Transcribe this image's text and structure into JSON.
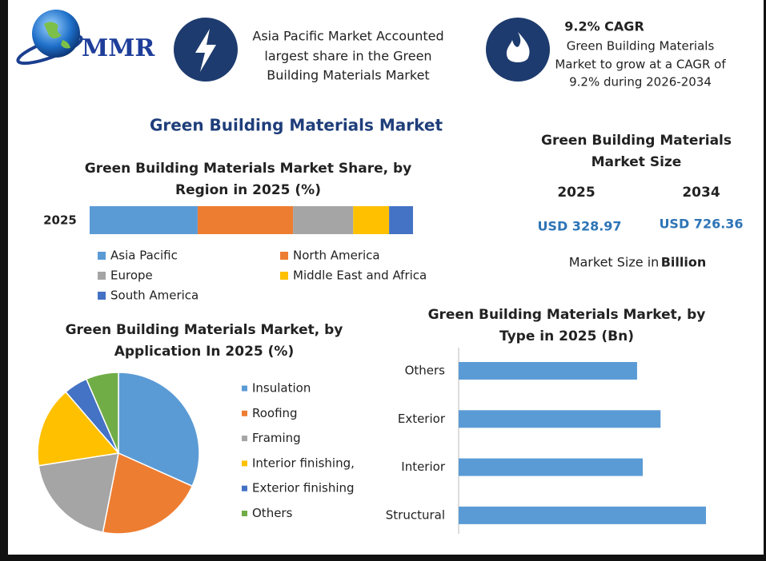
{
  "header": {
    "logo": "MMR",
    "info": [
      {
        "lines": [
          "Asia Pacific Market Accounted",
          "largest share in the Green",
          "Building Materials Market"
        ]
      },
      {
        "heading": "9.2% CAGR",
        "lines": [
          "Green Building Materials",
          "Market to grow at a CAGR of",
          "9.2% during 2026-2034"
        ]
      }
    ]
  },
  "main_title": "Green Building Materials Market",
  "market_size": {
    "title": [
      "Green Building Materials",
      "Market Size"
    ],
    "years": [
      "2025",
      "2034"
    ],
    "values": [
      "USD 328.97",
      "USD 726.36"
    ],
    "note": "Market Size in",
    "unit": "Billion"
  },
  "chart_data": [
    {
      "type": "stacked_bar",
      "title": [
        "Green Building Materials Market Share, by",
        "Region in 2025 (%)"
      ],
      "categories": [
        "2025"
      ],
      "series": [
        {
          "name": "Asia Pacific",
          "color": "#5b9bd5",
          "values": [
            33.4
          ]
        },
        {
          "name": "North America",
          "color": "#ed7d31",
          "values": [
            29.5
          ]
        },
        {
          "name": "Europe",
          "color": "#a5a5a5",
          "values": [
            18.6
          ]
        },
        {
          "name": "Middle East and Africa",
          "color": "#ffc000",
          "values": [
            11.1
          ]
        },
        {
          "name": "South America",
          "color": "#4472c4",
          "values": [
            7.4
          ]
        }
      ]
    },
    {
      "type": "pie",
      "title": [
        "Green Building Materials Market, by",
        "Application In 2025 (%)"
      ],
      "categories": [
        "Insulation",
        "Roofing",
        "Framing",
        "Interior finishing,",
        "Exterior finishing",
        "Others"
      ],
      "values": [
        31.7,
        21.4,
        19.4,
        16.2,
        4.8,
        6.5
      ],
      "colors": [
        "#5b9bd5",
        "#ed7d31",
        "#a5a5a5",
        "#ffc000",
        "#4472c4",
        "#70ad47"
      ]
    },
    {
      "type": "hbar",
      "title": [
        "Green Building Materials Market, by",
        "Type in 2025 (Bn)"
      ],
      "categories": [
        "Others",
        "Exterior",
        "Interior",
        "Structural"
      ],
      "values": [
        72.3,
        81.8,
        74.6,
        100.2
      ],
      "color": "#5b9bd5"
    }
  ]
}
